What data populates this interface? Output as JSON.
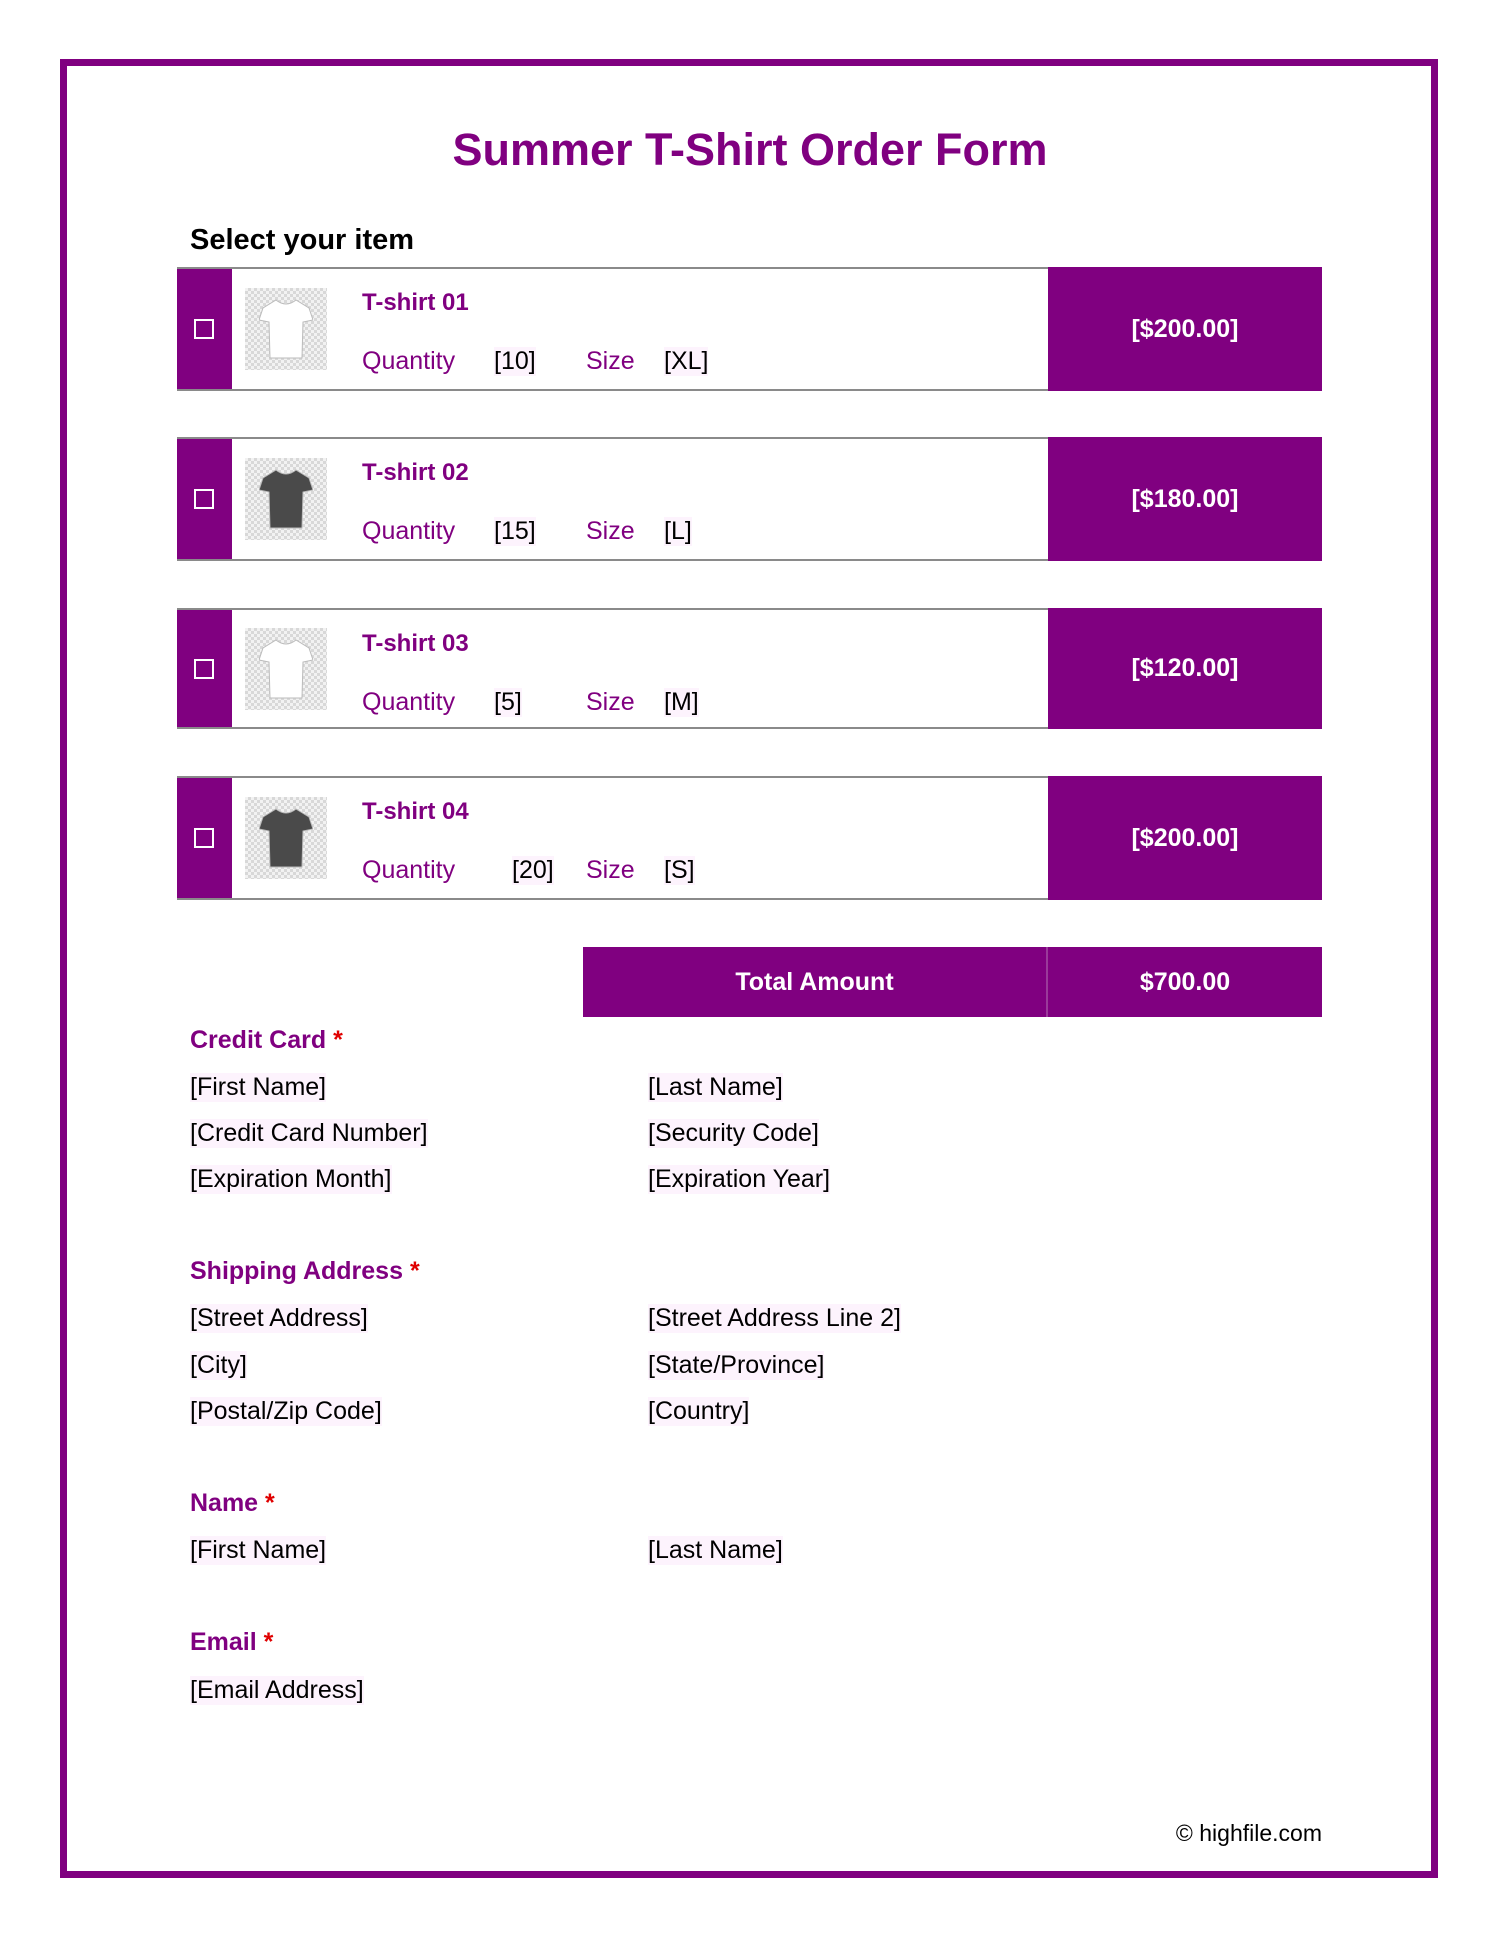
{
  "title": "Summer T-Shirt Order Form",
  "subtitle": "Select your item",
  "colors": {
    "accent": "#800080",
    "required": "#e00000"
  },
  "labels": {
    "quantity": "Quantity",
    "size": "Size"
  },
  "items": [
    {
      "name": "T-shirt 01",
      "quantity": "[10]",
      "size": "[XL]",
      "price": "[$200.00]",
      "shirt_color": "#ffffff",
      "checked": false
    },
    {
      "name": "T-shirt 02",
      "quantity": "[15]",
      "size": "[L]",
      "price": "[$180.00]",
      "shirt_color": "#4a4a4a",
      "checked": false
    },
    {
      "name": "T-shirt 03",
      "quantity": "[5]",
      "size": "[M]",
      "price": "[$120.00]",
      "shirt_color": "#ffffff",
      "checked": false
    },
    {
      "name": "T-shirt 04",
      "quantity": "[20]",
      "size": "[S]",
      "price": "[$200.00]",
      "shirt_color": "#4a4a4a",
      "checked": false
    }
  ],
  "total": {
    "label": "Total Amount",
    "value": "$700.00"
  },
  "required_mark": "*",
  "credit_card": {
    "label": "Credit Card",
    "first_name": "[First Name]",
    "last_name": "[Last Name]",
    "number": "[Credit Card Number]",
    "security_code": "[Security Code]",
    "exp_month": "[Expiration Month]",
    "exp_year": "[Expiration Year]"
  },
  "shipping": {
    "label": "Shipping Address",
    "street": "[Street Address]",
    "street2": "[Street Address Line 2]",
    "city": "[City]",
    "state": "[State/Province]",
    "zip": "[Postal/Zip Code]",
    "country": "[Country]"
  },
  "name": {
    "label": "Name",
    "first_name": "[First Name]",
    "last_name": "[Last Name]"
  },
  "email": {
    "label": "Email",
    "address": "[Email Address]"
  },
  "footer": {
    "copyright": "© highfile.com"
  }
}
